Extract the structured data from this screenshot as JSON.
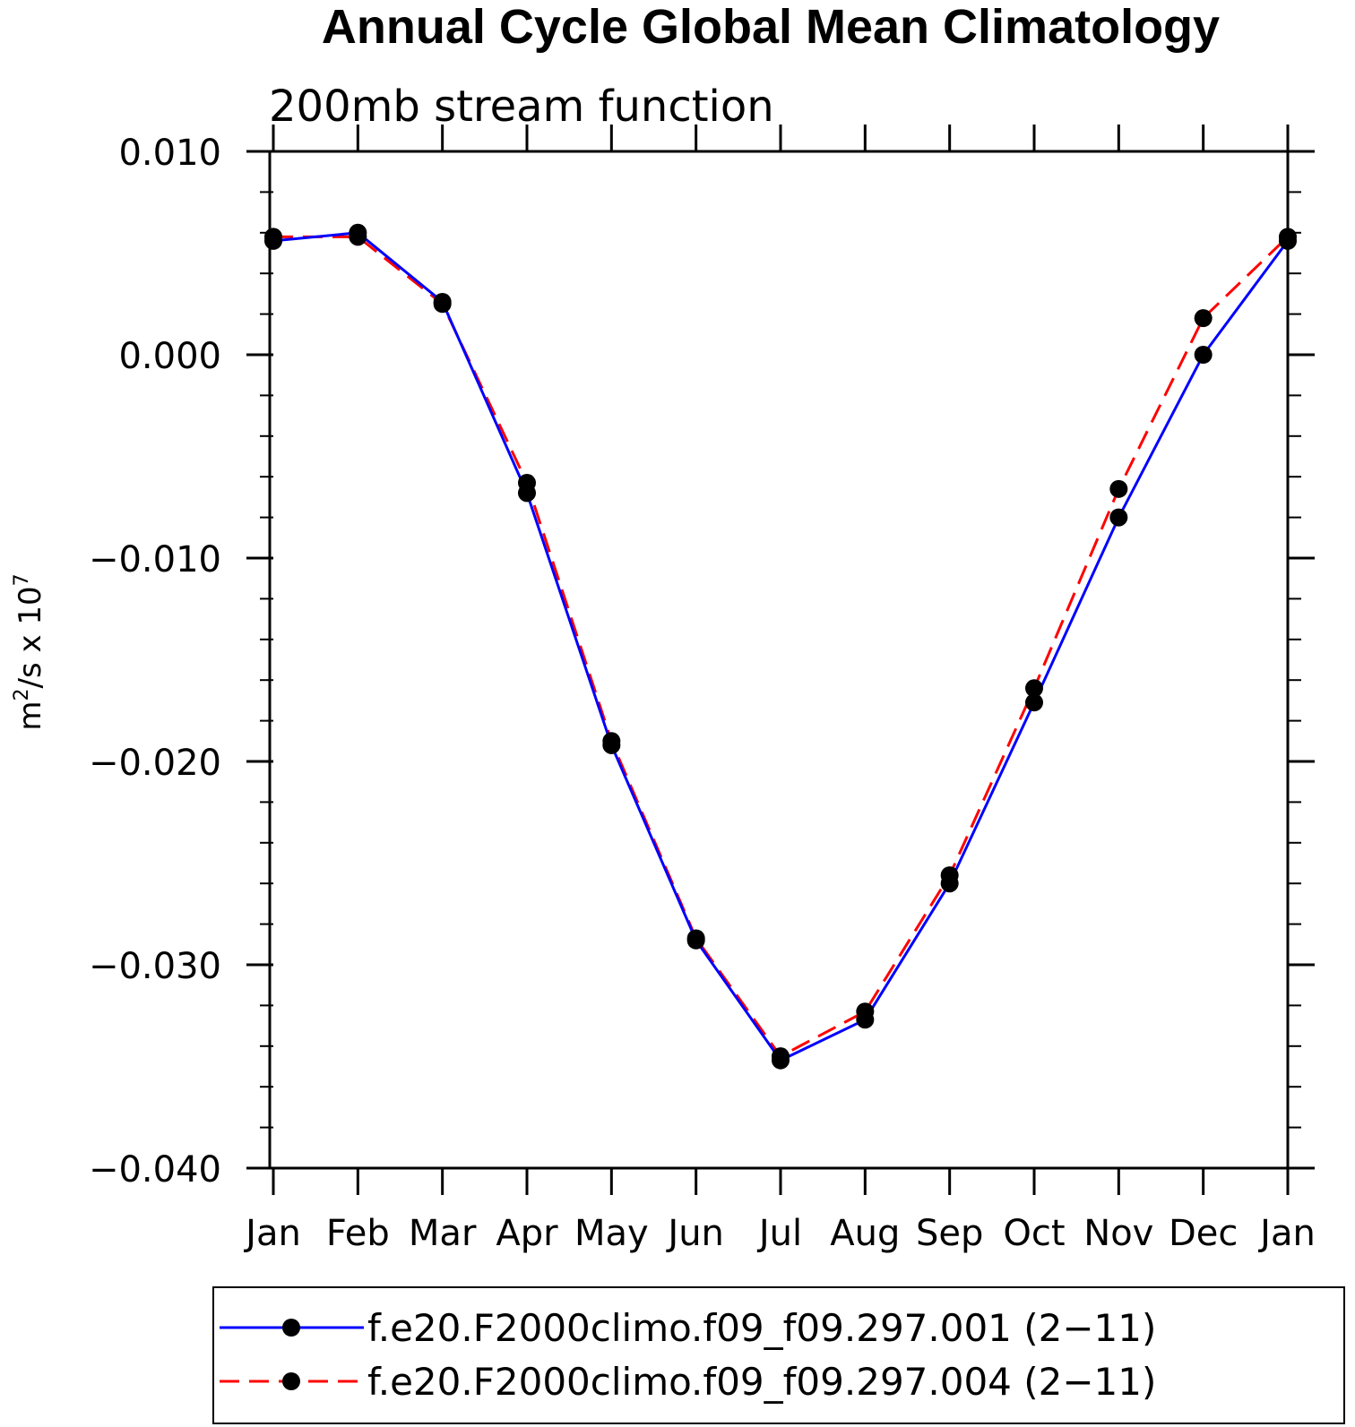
{
  "chart_data": {
    "type": "line",
    "title": "Annual Cycle Global Mean Climatology",
    "subtitle": "200mb stream function",
    "ylabel": {
      "base": "m",
      "sup1": "2",
      "mid": "/s x 10",
      "sup2": "7"
    },
    "xlabel": "",
    "x_categories": [
      "Jan",
      "Feb",
      "Mar",
      "Apr",
      "May",
      "Jun",
      "Jul",
      "Aug",
      "Sep",
      "Oct",
      "Nov",
      "Dec",
      "Jan"
    ],
    "ylim": [
      -0.04,
      0.01
    ],
    "y_ticks": [
      0.01,
      0.0,
      -0.01,
      -0.02,
      -0.03,
      -0.04
    ],
    "y_tick_labels": [
      "0.010",
      "0.000",
      "−0.010",
      "−0.020",
      "−0.030",
      "−0.040"
    ],
    "y_minor_step": 0.002,
    "grid": false,
    "legend_position": "bottom",
    "series": [
      {
        "name": "f.e20.F2000climo.f09_f09.297.001 (2−11)",
        "color": "#0000ff",
        "dash": "solid",
        "marker": "filled-circle",
        "values": [
          0.0056,
          0.006,
          0.0026,
          -0.0068,
          -0.0192,
          -0.0288,
          -0.0347,
          -0.0327,
          -0.026,
          -0.0171,
          -0.008,
          0.0,
          0.0056
        ]
      },
      {
        "name": "f.e20.F2000climo.f09_f09.297.004 (2−11)",
        "color": "#ff0000",
        "dash": "dashed",
        "marker": "filled-circle",
        "values": [
          0.0058,
          0.0058,
          0.0025,
          -0.0063,
          -0.019,
          -0.0287,
          -0.0345,
          -0.0323,
          -0.0256,
          -0.0164,
          -0.0066,
          0.0018,
          0.0058
        ]
      }
    ]
  }
}
